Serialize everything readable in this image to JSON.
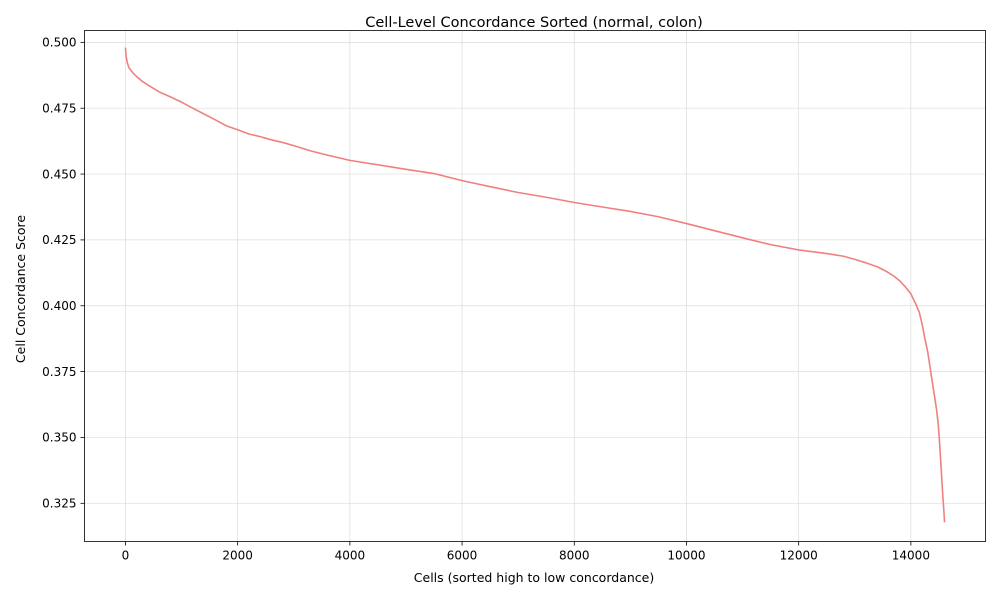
{
  "chart_data": {
    "type": "line",
    "title": "Cell-Level Concordance Sorted (normal, colon)",
    "xlabel": "Cells (sorted high to low concordance)",
    "ylabel": "Cell Concordance Score",
    "xlim": [
      -730,
      15330
    ],
    "ylim": [
      0.3105,
      0.5045
    ],
    "x_ticks": [
      0,
      2000,
      4000,
      6000,
      8000,
      10000,
      12000,
      14000
    ],
    "x_tick_labels": [
      "0",
      "2000",
      "4000",
      "6000",
      "8000",
      "10000",
      "12000",
      "14000"
    ],
    "y_ticks": [
      0.325,
      0.35,
      0.375,
      0.4,
      0.425,
      0.45,
      0.475,
      0.5
    ],
    "y_tick_labels": [
      "0.325",
      "0.350",
      "0.375",
      "0.400",
      "0.425",
      "0.450",
      "0.475",
      "0.500"
    ],
    "grid": true,
    "series": [
      {
        "color": "#f08080",
        "x": [
          0,
          10,
          30,
          60,
          100,
          150,
          200,
          300,
          400,
          500,
          600,
          800,
          1000,
          1200,
          1400,
          1600,
          1800,
          2000,
          2200,
          2400,
          2600,
          2800,
          3000,
          3300,
          3600,
          4000,
          4500,
          5000,
          5500,
          6000,
          6500,
          7000,
          7500,
          8000,
          8500,
          9000,
          9500,
          10000,
          10500,
          11000,
          11500,
          12000,
          12500,
          12800,
          13000,
          13200,
          13400,
          13550,
          13700,
          13800,
          13900,
          14000,
          14080,
          14150,
          14200,
          14250,
          14300,
          14350,
          14400,
          14430,
          14460,
          14490,
          14510,
          14530,
          14550,
          14570,
          14590,
          14600
        ],
        "y": [
          0.498,
          0.495,
          0.4925,
          0.4905,
          0.4893,
          0.488,
          0.487,
          0.4852,
          0.4838,
          0.4825,
          0.4812,
          0.4793,
          0.4773,
          0.475,
          0.4728,
          0.4706,
          0.4683,
          0.4668,
          0.4652,
          0.4642,
          0.463,
          0.462,
          0.4608,
          0.4588,
          0.4572,
          0.4552,
          0.4535,
          0.4518,
          0.4502,
          0.4475,
          0.4452,
          0.443,
          0.4412,
          0.4392,
          0.4375,
          0.4358,
          0.4338,
          0.4312,
          0.4285,
          0.4258,
          0.4232,
          0.4212,
          0.4198,
          0.4188,
          0.4176,
          0.4163,
          0.4148,
          0.4132,
          0.4112,
          0.4095,
          0.4072,
          0.4045,
          0.401,
          0.3975,
          0.393,
          0.3875,
          0.3825,
          0.3755,
          0.3685,
          0.3645,
          0.3602,
          0.3545,
          0.3485,
          0.3415,
          0.3345,
          0.3275,
          0.3215,
          0.3178
        ]
      }
    ]
  }
}
